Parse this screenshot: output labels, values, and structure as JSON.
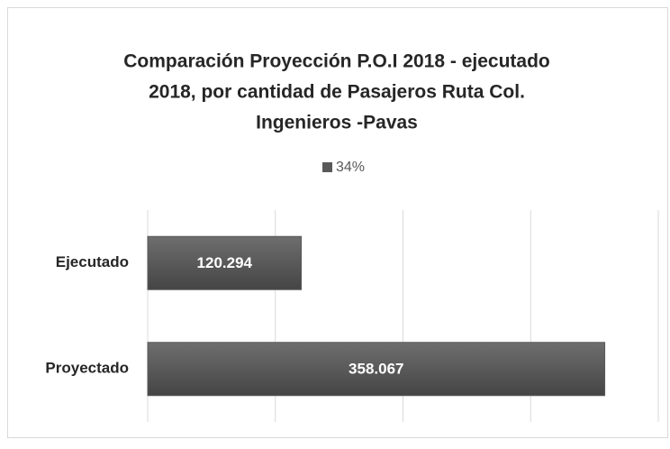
{
  "chart_data": {
    "type": "hbar",
    "title": [
      "Comparación Proyección P.O.I 2018 -  ejecutado",
      "2018, por cantidad de Pasajeros  Ruta Col.",
      "Ingenieros -Pavas"
    ],
    "categories": [
      "Ejecutado",
      "Proyectado"
    ],
    "series": [
      {
        "name": "34%",
        "color": "#595959",
        "values": [
          120294,
          358067
        ],
        "value_labels": [
          "120.294",
          "358.067"
        ]
      }
    ],
    "xlim": [
      0,
      400000
    ],
    "xticks": [
      0,
      100000,
      200000,
      300000,
      400000
    ],
    "grid": true,
    "legend": "top"
  }
}
